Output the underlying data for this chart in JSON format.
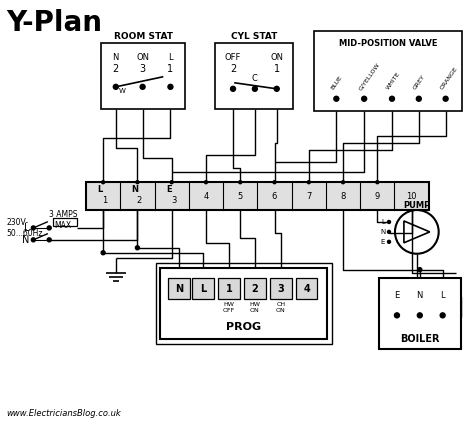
{
  "title": "Y-Plan",
  "bg_color": "#ffffff",
  "line_color": "#000000",
  "website": "www.ElectriciansBlog.co.uk",
  "supply_text": "230V-\n50...60Hz",
  "fuse_text": "3 AMPS\nMAX",
  "room_stat_label": "ROOM STAT",
  "cyl_stat_label": "CYL STAT",
  "mid_valve_label": "MID-POSITION VALVE",
  "pump_label": "PUMP",
  "boiler_label": "BOILER",
  "prog_label": "PROG",
  "wire_labels": [
    "BLUE",
    "G/YELLOW",
    "WHITE",
    "GREY",
    "ORANGE"
  ]
}
